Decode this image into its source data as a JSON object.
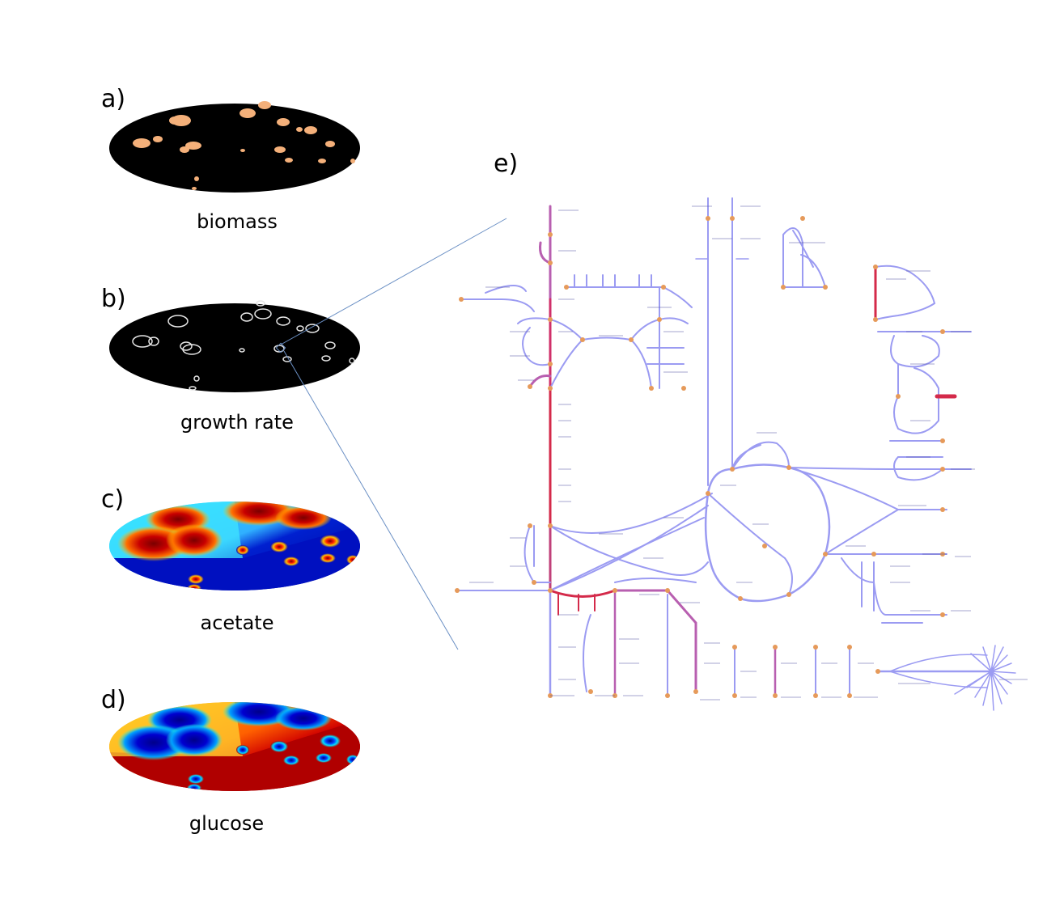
{
  "panels": [
    {
      "letter": "a)",
      "caption": "biomass"
    },
    {
      "letter": "b)",
      "caption": "growth rate"
    },
    {
      "letter": "c)",
      "caption": "acetate"
    },
    {
      "letter": "d)",
      "caption": "glucose"
    },
    {
      "letter": "e)",
      "caption": ""
    }
  ],
  "colors": {
    "dish_background": "#000000",
    "colony": "#f4b07a",
    "ring": "#dddddd",
    "network_edge": "#9b9bf2",
    "network_highlight": "#d42a4a",
    "network_mid": "#b85fb0",
    "metabolite_node": "#e69a5a",
    "zoom_line": "#6a8fc4"
  }
}
